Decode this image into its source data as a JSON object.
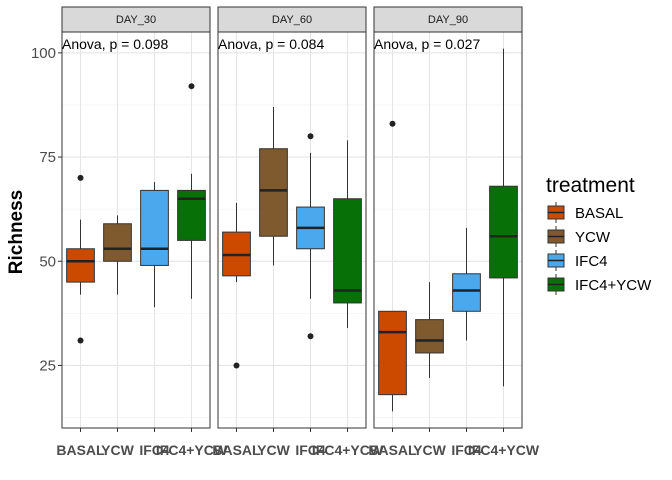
{
  "chart_data": {
    "type": "boxplot",
    "ylabel": "Richness",
    "ylim": [
      10,
      105
    ],
    "yticks": [
      25,
      50,
      75,
      100
    ],
    "grid": true,
    "legend": {
      "title": "treatment",
      "placement": "right",
      "entries": [
        {
          "name": "BASAL",
          "color": "#CC4A00"
        },
        {
          "name": "YCW",
          "color": "#7E5A2E"
        },
        {
          "name": "IFC4",
          "color": "#4CA8EC"
        },
        {
          "name": "IFC4+YCW",
          "color": "#077006"
        }
      ]
    },
    "categories": [
      "BASAL",
      "YCW",
      "IFC4",
      "IFC4+YCW"
    ],
    "panels": [
      {
        "strip": "DAY_30",
        "annotation": "Anova, p = 0.098",
        "boxes": [
          {
            "category": "BASAL",
            "q1": 45,
            "median": 50,
            "q3": 53,
            "whisker_low": 42,
            "whisker_high": 60,
            "outliers": [
              70,
              31
            ]
          },
          {
            "category": "YCW",
            "q1": 50,
            "median": 53,
            "q3": 59,
            "whisker_low": 42,
            "whisker_high": 61,
            "outliers": []
          },
          {
            "category": "IFC4",
            "q1": 49,
            "median": 53,
            "q3": 67,
            "whisker_low": 39,
            "whisker_high": 69,
            "outliers": []
          },
          {
            "category": "IFC4+YCW",
            "q1": 55,
            "median": 65,
            "q3": 67,
            "whisker_low": 41,
            "whisker_high": 71,
            "outliers": [
              92
            ]
          }
        ]
      },
      {
        "strip": "DAY_60",
        "annotation": "Anova, p = 0.084",
        "boxes": [
          {
            "category": "BASAL",
            "q1": 46.5,
            "median": 51.5,
            "q3": 57,
            "whisker_low": 45,
            "whisker_high": 64,
            "outliers": [
              25
            ]
          },
          {
            "category": "YCW",
            "q1": 56,
            "median": 67,
            "q3": 77,
            "whisker_low": 49,
            "whisker_high": 87,
            "outliers": []
          },
          {
            "category": "IFC4",
            "q1": 53,
            "median": 58,
            "q3": 63,
            "whisker_low": 41,
            "whisker_high": 76,
            "outliers": [
              80,
              32
            ]
          },
          {
            "category": "IFC4+YCW",
            "q1": 40,
            "median": 43,
            "q3": 65,
            "whisker_low": 34,
            "whisker_high": 79,
            "outliers": []
          }
        ]
      },
      {
        "strip": "DAY_90",
        "annotation": "Anova, p = 0.027",
        "boxes": [
          {
            "category": "BASAL",
            "q1": 18,
            "median": 33,
            "q3": 38,
            "whisker_low": 14,
            "whisker_high": 38,
            "outliers": [
              83
            ]
          },
          {
            "category": "YCW",
            "q1": 28,
            "median": 31,
            "q3": 36,
            "whisker_low": 22,
            "whisker_high": 45,
            "outliers": []
          },
          {
            "category": "IFC4",
            "q1": 38,
            "median": 43,
            "q3": 47,
            "whisker_low": 31,
            "whisker_high": 58,
            "outliers": []
          },
          {
            "category": "IFC4+YCW",
            "q1": 46,
            "median": 56,
            "q3": 68,
            "whisker_low": 20,
            "whisker_high": 101,
            "outliers": []
          }
        ]
      }
    ]
  }
}
